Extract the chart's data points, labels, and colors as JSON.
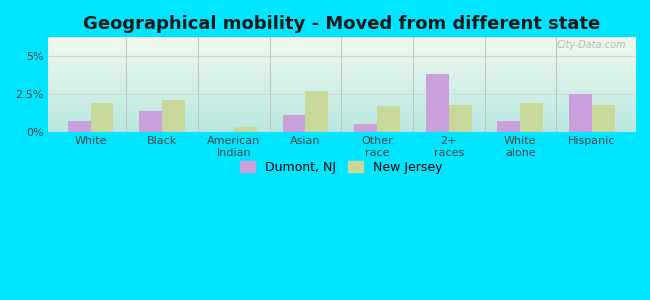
{
  "title": "Geographical mobility - Moved from different state",
  "categories": [
    "White",
    "Black",
    "American\nIndian",
    "Asian",
    "Other\nrace",
    "2+\nraces",
    "White\nalone",
    "Hispanic"
  ],
  "dumont_values": [
    0.7,
    1.4,
    0.0,
    1.1,
    0.5,
    3.8,
    0.7,
    2.5
  ],
  "nj_values": [
    1.9,
    2.1,
    0.3,
    2.7,
    1.7,
    1.8,
    1.9,
    1.8
  ],
  "dumont_color": "#c9a0dc",
  "nj_color": "#c8d89a",
  "ylim": [
    0,
    6.25
  ],
  "yticks": [
    0,
    2.5,
    5.0
  ],
  "ytick_labels": [
    "0%",
    "2.5%",
    "5%"
  ],
  "legend_dumont": "Dumont, NJ",
  "legend_nj": "New Jersey",
  "bar_width": 0.32,
  "bg_color_top": "#f0f8ee",
  "bg_color_bottom": "#b8e8e0",
  "outer_bg": "#00e5ff",
  "title_fontsize": 13,
  "tick_fontsize": 8,
  "legend_fontsize": 9,
  "watermark_text": "City-Data.com",
  "grid_color": "#d8d8d8",
  "separator_color": "#bbbbbb"
}
